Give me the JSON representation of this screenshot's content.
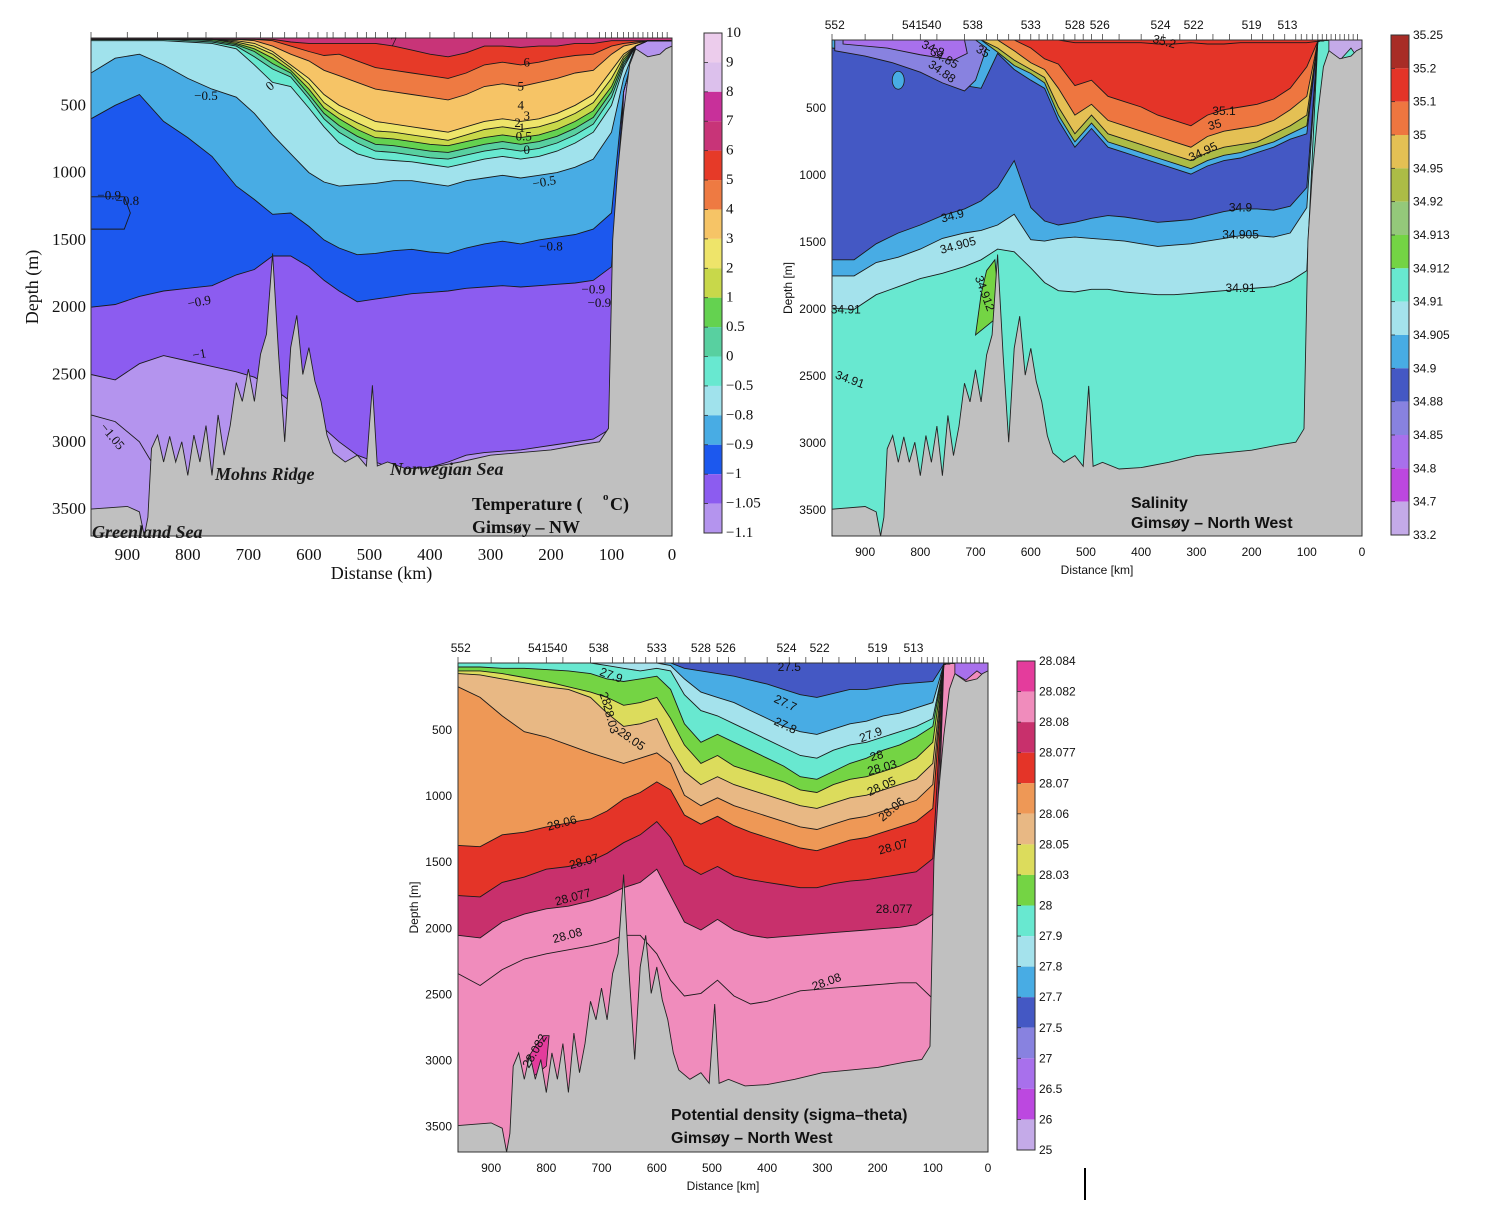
{
  "chart_data": [
    {
      "id": "temperature",
      "type": "contour",
      "title_lines": [
        "Temperature (",
        "C)",
        "Gimsøy – NW"
      ],
      "title_superscript": "o",
      "xlabel": "Distanse (km)",
      "ylabel": "Depth (m)",
      "xlim": [
        960,
        0
      ],
      "ylim": [
        3700,
        0
      ],
      "xticks": [
        "900",
        "800",
        "700",
        "600",
        "500",
        "400",
        "300",
        "200",
        "100",
        "0"
      ],
      "xtick_values": [
        900,
        800,
        700,
        600,
        500,
        400,
        300,
        200,
        100,
        0
      ],
      "yticks": [
        "500",
        "1000",
        "1500",
        "2000",
        "2500",
        "3000",
        "3500"
      ],
      "ytick_values": [
        500,
        1000,
        1500,
        2000,
        2500,
        3000,
        3500
      ],
      "annotations": [
        "Greenland Sea",
        "Mohns Ridge",
        "Norwegian Sea"
      ],
      "colorbar": {
        "labels": [
          "10",
          "9",
          "8",
          "7",
          "6",
          "5",
          "4",
          "3",
          "2",
          "1",
          "0.5",
          "0",
          "−0.5",
          "−0.8",
          "−0.9",
          "−1",
          "−1.05",
          "−1.1"
        ],
        "colors": [
          "#ecccec",
          "#dcc0ec",
          "#c8309a",
          "#c83478",
          "#e63a28",
          "#ee7a42",
          "#f6c466",
          "#eee46a",
          "#c8d84a",
          "#64d250",
          "#58d0a0",
          "#68e8d0",
          "#a0e2ec",
          "#48ace4",
          "#1c58ee",
          "#8c5cf0",
          "#b494ee"
        ]
      },
      "contour_labels": [
        "7",
        "6",
        "5",
        "4",
        "3",
        "2",
        "1",
        "0.5",
        "0",
        "0",
        "−0.5",
        "−0.5",
        "−0.8",
        "−0.8",
        "−0.9",
        "−0.9",
        "−0.9",
        "−0.9",
        "−1",
        "−1.05"
      ]
    },
    {
      "id": "salinity",
      "type": "contour",
      "title_lines": [
        "Salinity",
        "Gimsøy – North West"
      ],
      "xlabel": "Distance [km]",
      "ylabel": "Depth [m]",
      "xlim": [
        960,
        0
      ],
      "ylim": [
        3700,
        0
      ],
      "xticks": [
        "900",
        "800",
        "700",
        "600",
        "500",
        "400",
        "300",
        "200",
        "100",
        "0"
      ],
      "xtick_values": [
        900,
        800,
        700,
        600,
        500,
        400,
        300,
        200,
        100,
        0
      ],
      "yticks": [
        "500",
        "1000",
        "1500",
        "2000",
        "2500",
        "3000",
        "3500"
      ],
      "ytick_values": [
        500,
        1000,
        1500,
        2000,
        2500,
        3000,
        3500
      ],
      "stations": [
        "552",
        "541",
        "540",
        "538",
        "533",
        "528",
        "526",
        "524",
        "522",
        "519",
        "513"
      ],
      "station_km": [
        955,
        815,
        780,
        705,
        600,
        520,
        475,
        365,
        305,
        200,
        135
      ],
      "colorbar": {
        "labels": [
          "35.25",
          "35.2",
          "35.1",
          "35",
          "34.95",
          "34.92",
          "34.913",
          "34.912",
          "34.91",
          "34.905",
          "34.9",
          "34.88",
          "34.85",
          "34.8",
          "34.7",
          "33.2"
        ],
        "colors": [
          "#a82c26",
          "#e43428",
          "#ee7640",
          "#e4c054",
          "#acbc46",
          "#94c87a",
          "#74d444",
          "#68e8d0",
          "#a4e2ec",
          "#48ace4",
          "#4458c4",
          "#8882e0",
          "#a870ec",
          "#bc48e0",
          "#c4aae8"
        ]
      },
      "contour_labels": [
        "35.2",
        "35.1",
        "35",
        "34.95",
        "34.8",
        "34.85",
        "34.88",
        "35",
        "34.9",
        "34.9",
        "34.905",
        "34.905",
        "34.91",
        "34.91",
        "34.91",
        "34.912"
      ]
    },
    {
      "id": "density",
      "type": "contour",
      "title_lines": [
        "Potential density (sigma–theta)",
        "Gimsøy – North West"
      ],
      "xlabel": "Distance [km]",
      "ylabel": "Depth [m]",
      "xlim": [
        960,
        0
      ],
      "ylim": [
        3700,
        0
      ],
      "xticks": [
        "900",
        "800",
        "700",
        "600",
        "500",
        "400",
        "300",
        "200",
        "100",
        "0"
      ],
      "xtick_values": [
        900,
        800,
        700,
        600,
        500,
        400,
        300,
        200,
        100,
        0
      ],
      "yticks": [
        "500",
        "1000",
        "1500",
        "2000",
        "2500",
        "3000",
        "3500"
      ],
      "ytick_values": [
        500,
        1000,
        1500,
        2000,
        2500,
        3000,
        3500
      ],
      "stations": [
        "552",
        "541",
        "540",
        "538",
        "533",
        "528",
        "526",
        "524",
        "522",
        "519",
        "513"
      ],
      "station_km": [
        955,
        815,
        780,
        705,
        600,
        520,
        475,
        365,
        305,
        200,
        135
      ],
      "colorbar": {
        "labels": [
          "28.084",
          "28.082",
          "28.08",
          "28.077",
          "28.07",
          "28.06",
          "28.05",
          "28.03",
          "28",
          "27.9",
          "27.8",
          "27.7",
          "27.5",
          "27",
          "26.5",
          "26",
          "25"
        ],
        "colors": [
          "#e43c9c",
          "#f08cbc",
          "#c8306c",
          "#e43428",
          "#ee9856",
          "#e8b884",
          "#dcdc5c",
          "#74d444",
          "#68e8d0",
          "#a4e2ec",
          "#48ace4",
          "#4458c4",
          "#8882e0",
          "#a870ec",
          "#bc48e0",
          "#c4aae8"
        ]
      },
      "contour_labels": [
        "27.9",
        "27.5",
        "27.7",
        "27.8",
        "27.9",
        "28",
        "28",
        "28.03",
        "28.03",
        "28.05",
        "28.05",
        "28.06",
        "28.06",
        "28.07",
        "28.07",
        "28.077",
        "28.077",
        "28.08",
        "28.08",
        "28.082"
      ]
    }
  ]
}
